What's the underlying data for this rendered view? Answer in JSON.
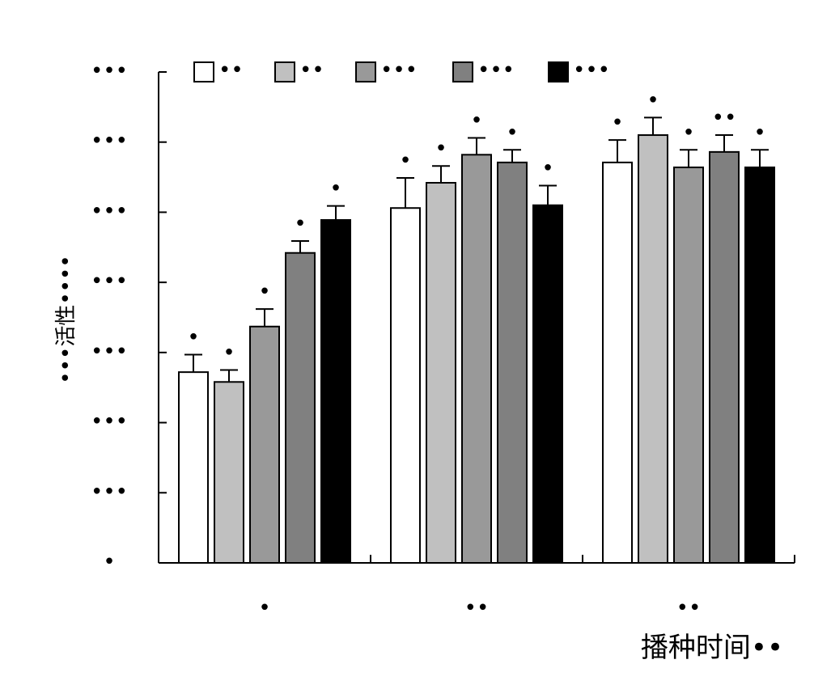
{
  "chart_data": {
    "type": "bar",
    "y_label": "•••活性••••",
    "x_label": "播种时间••",
    "categories": [
      "•",
      "••",
      "••"
    ],
    "ylim": [
      0,
      7
    ],
    "yticks": [
      {
        "value": 0,
        "label": "•"
      },
      {
        "value": 1,
        "label": "•••"
      },
      {
        "value": 2,
        "label": "•••"
      },
      {
        "value": 3,
        "label": "•••"
      },
      {
        "value": 4,
        "label": "•••"
      },
      {
        "value": 5,
        "label": "•••"
      },
      {
        "value": 6,
        "label": "•••"
      },
      {
        "value": 7,
        "label": "•••"
      }
    ],
    "series": [
      {
        "name": "••",
        "color": "#ffffff",
        "values": [
          2.72,
          5.06,
          5.71
        ],
        "errors": [
          0.25,
          0.43,
          0.32
        ],
        "annotations": [
          "•",
          "•",
          "•"
        ]
      },
      {
        "name": "••",
        "color": "#c0c0c0",
        "values": [
          2.58,
          5.42,
          6.1
        ],
        "errors": [
          0.17,
          0.24,
          0.25
        ],
        "annotations": [
          "•",
          "•",
          "•"
        ]
      },
      {
        "name": "•••",
        "color": "#999999",
        "values": [
          3.37,
          5.82,
          5.64
        ],
        "errors": [
          0.25,
          0.24,
          0.25
        ],
        "annotations": [
          "•",
          "•",
          "•"
        ]
      },
      {
        "name": "•••",
        "color": "#808080",
        "values": [
          4.42,
          5.71,
          5.86
        ],
        "errors": [
          0.17,
          0.18,
          0.24
        ],
        "annotations": [
          "•",
          "•",
          "••"
        ]
      },
      {
        "name": "•••",
        "color": "#000000",
        "values": [
          4.89,
          5.1,
          5.64
        ],
        "errors": [
          0.2,
          0.28,
          0.25
        ],
        "annotations": [
          "•",
          "•",
          "•"
        ]
      }
    ]
  }
}
